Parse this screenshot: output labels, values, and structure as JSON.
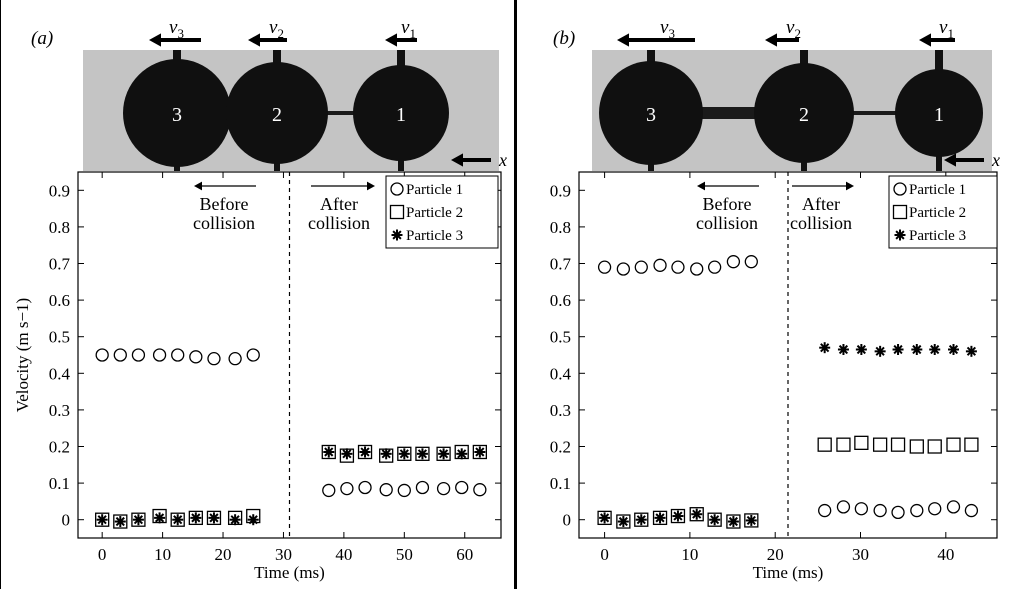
{
  "chart_data": [
    {
      "type": "scatter",
      "panel_label": "(a)",
      "xlabel": "Time (ms)",
      "ylabel": "Velocity (m s−1)",
      "xlim": [
        -4,
        66
      ],
      "ylim": [
        -0.05,
        0.95
      ],
      "xticks": [
        0,
        10,
        20,
        30,
        40,
        50,
        60
      ],
      "yticks": [
        0,
        0.1,
        0.2,
        0.3,
        0.4,
        0.5,
        0.6,
        0.7,
        0.8,
        0.9
      ],
      "xtick_labels": [
        "0",
        "10",
        "20",
        "30",
        "40",
        "50",
        "60"
      ],
      "ytick_labels": [
        "0",
        "0.1",
        "0.2",
        "0.3",
        "0.4",
        "0.5",
        "0.6",
        "0.7",
        "0.8",
        "0.9"
      ],
      "collision_time": 31,
      "legend_position": "top-right",
      "annotations": {
        "before": [
          "Before",
          "collision"
        ],
        "after": [
          "After",
          "collision"
        ]
      },
      "series": [
        {
          "name": "Particle 1",
          "marker": "circle",
          "x": [
            0,
            3,
            6,
            9.5,
            12.5,
            15.5,
            18.5,
            22,
            25,
            37.5,
            40.5,
            43.5,
            47,
            50,
            53,
            56.5,
            59.5,
            62.5
          ],
          "y": [
            0.45,
            0.45,
            0.45,
            0.45,
            0.45,
            0.445,
            0.44,
            0.44,
            0.45,
            0.08,
            0.085,
            0.088,
            0.082,
            0.08,
            0.088,
            0.085,
            0.088,
            0.082
          ]
        },
        {
          "name": "Particle 2",
          "marker": "square",
          "x": [
            0,
            3,
            6,
            9.5,
            12.5,
            15.5,
            18.5,
            22,
            25,
            37.5,
            40.5,
            43.5,
            47,
            50,
            53,
            56.5,
            59.5,
            62.5
          ],
          "y": [
            0,
            -0.005,
            0,
            0.01,
            0,
            0.005,
            0.005,
            0.005,
            0.01,
            0.185,
            0.175,
            0.185,
            0.175,
            0.18,
            0.18,
            0.18,
            0.185,
            0.185
          ]
        },
        {
          "name": "Particle 3",
          "marker": "asterisk",
          "x": [
            0,
            3,
            6,
            9.5,
            12.5,
            15.5,
            18.5,
            22,
            25,
            37.5,
            40.5,
            43.5,
            47,
            50,
            53,
            56.5,
            59.5,
            62.5
          ],
          "y": [
            0,
            -0.005,
            0,
            0.005,
            0,
            0.005,
            0.005,
            0,
            0,
            0.185,
            0.18,
            0.185,
            0.18,
            0.18,
            0.18,
            0.18,
            0.18,
            0.185
          ]
        }
      ]
    },
    {
      "type": "scatter",
      "panel_label": "(b)",
      "xlabel": "Time (ms)",
      "ylabel": "",
      "xlim": [
        -3,
        46
      ],
      "ylim": [
        -0.05,
        0.95
      ],
      "xticks": [
        0,
        10,
        20,
        30,
        40
      ],
      "yticks": [
        0,
        0.1,
        0.2,
        0.3,
        0.4,
        0.5,
        0.6,
        0.7,
        0.8,
        0.9
      ],
      "xtick_labels": [
        "0",
        "10",
        "20",
        "30",
        "40"
      ],
      "ytick_labels": [
        "0",
        "0.1",
        "0.2",
        "0.3",
        "0.4",
        "0.5",
        "0.6",
        "0.7",
        "0.8",
        "0.9"
      ],
      "collision_time": 21.5,
      "legend_position": "top-right",
      "annotations": {
        "before": [
          "Before",
          "collision"
        ],
        "after": [
          "After",
          "collision"
        ]
      },
      "series": [
        {
          "name": "Particle 1",
          "marker": "circle",
          "x": [
            0,
            2.2,
            4.3,
            6.5,
            8.6,
            10.8,
            12.9,
            15.1,
            17.2,
            25.8,
            28,
            30.1,
            32.3,
            34.4,
            36.6,
            38.7,
            40.9,
            43
          ],
          "y": [
            0.69,
            0.685,
            0.69,
            0.695,
            0.69,
            0.685,
            0.69,
            0.705,
            0.705,
            0.025,
            0.035,
            0.03,
            0.025,
            0.02,
            0.025,
            0.03,
            0.035,
            0.025
          ]
        },
        {
          "name": "Particle 2",
          "marker": "square",
          "x": [
            0,
            2.2,
            4.3,
            6.5,
            8.6,
            10.8,
            12.9,
            15.1,
            17.2,
            25.8,
            28,
            30.1,
            32.3,
            34.4,
            36.6,
            38.7,
            40.9,
            43
          ],
          "y": [
            0.005,
            -0.005,
            0,
            0.005,
            0.01,
            0.015,
            0,
            -0.005,
            -0.002,
            0.205,
            0.205,
            0.21,
            0.205,
            0.205,
            0.2,
            0.2,
            0.205,
            0.205
          ]
        },
        {
          "name": "Particle 3",
          "marker": "asterisk",
          "x": [
            0,
            2.2,
            4.3,
            6.5,
            8.6,
            10.8,
            12.9,
            15.1,
            17.2,
            25.8,
            28,
            30.1,
            32.3,
            34.4,
            36.6,
            38.7,
            40.9,
            43
          ],
          "y": [
            0.005,
            -0.005,
            0,
            0.005,
            0.01,
            0.015,
            0,
            -0.005,
            -0.002,
            0.47,
            0.465,
            0.465,
            0.46,
            0.465,
            0.465,
            0.465,
            0.465,
            0.46
          ]
        }
      ]
    }
  ],
  "photos": [
    {
      "arrows": [
        {
          "base": "v",
          "sub": "3"
        },
        {
          "base": "v",
          "sub": "2"
        },
        {
          "base": "v",
          "sub": "1"
        }
      ],
      "particles": [
        "3",
        "2",
        "1"
      ],
      "axis_label": "x"
    },
    {
      "arrows": [
        {
          "base": "v",
          "sub": "3"
        },
        {
          "base": "v",
          "sub": "2"
        },
        {
          "base": "v",
          "sub": "1"
        }
      ],
      "particles": [
        "3",
        "2",
        "1"
      ],
      "axis_label": "x"
    }
  ]
}
